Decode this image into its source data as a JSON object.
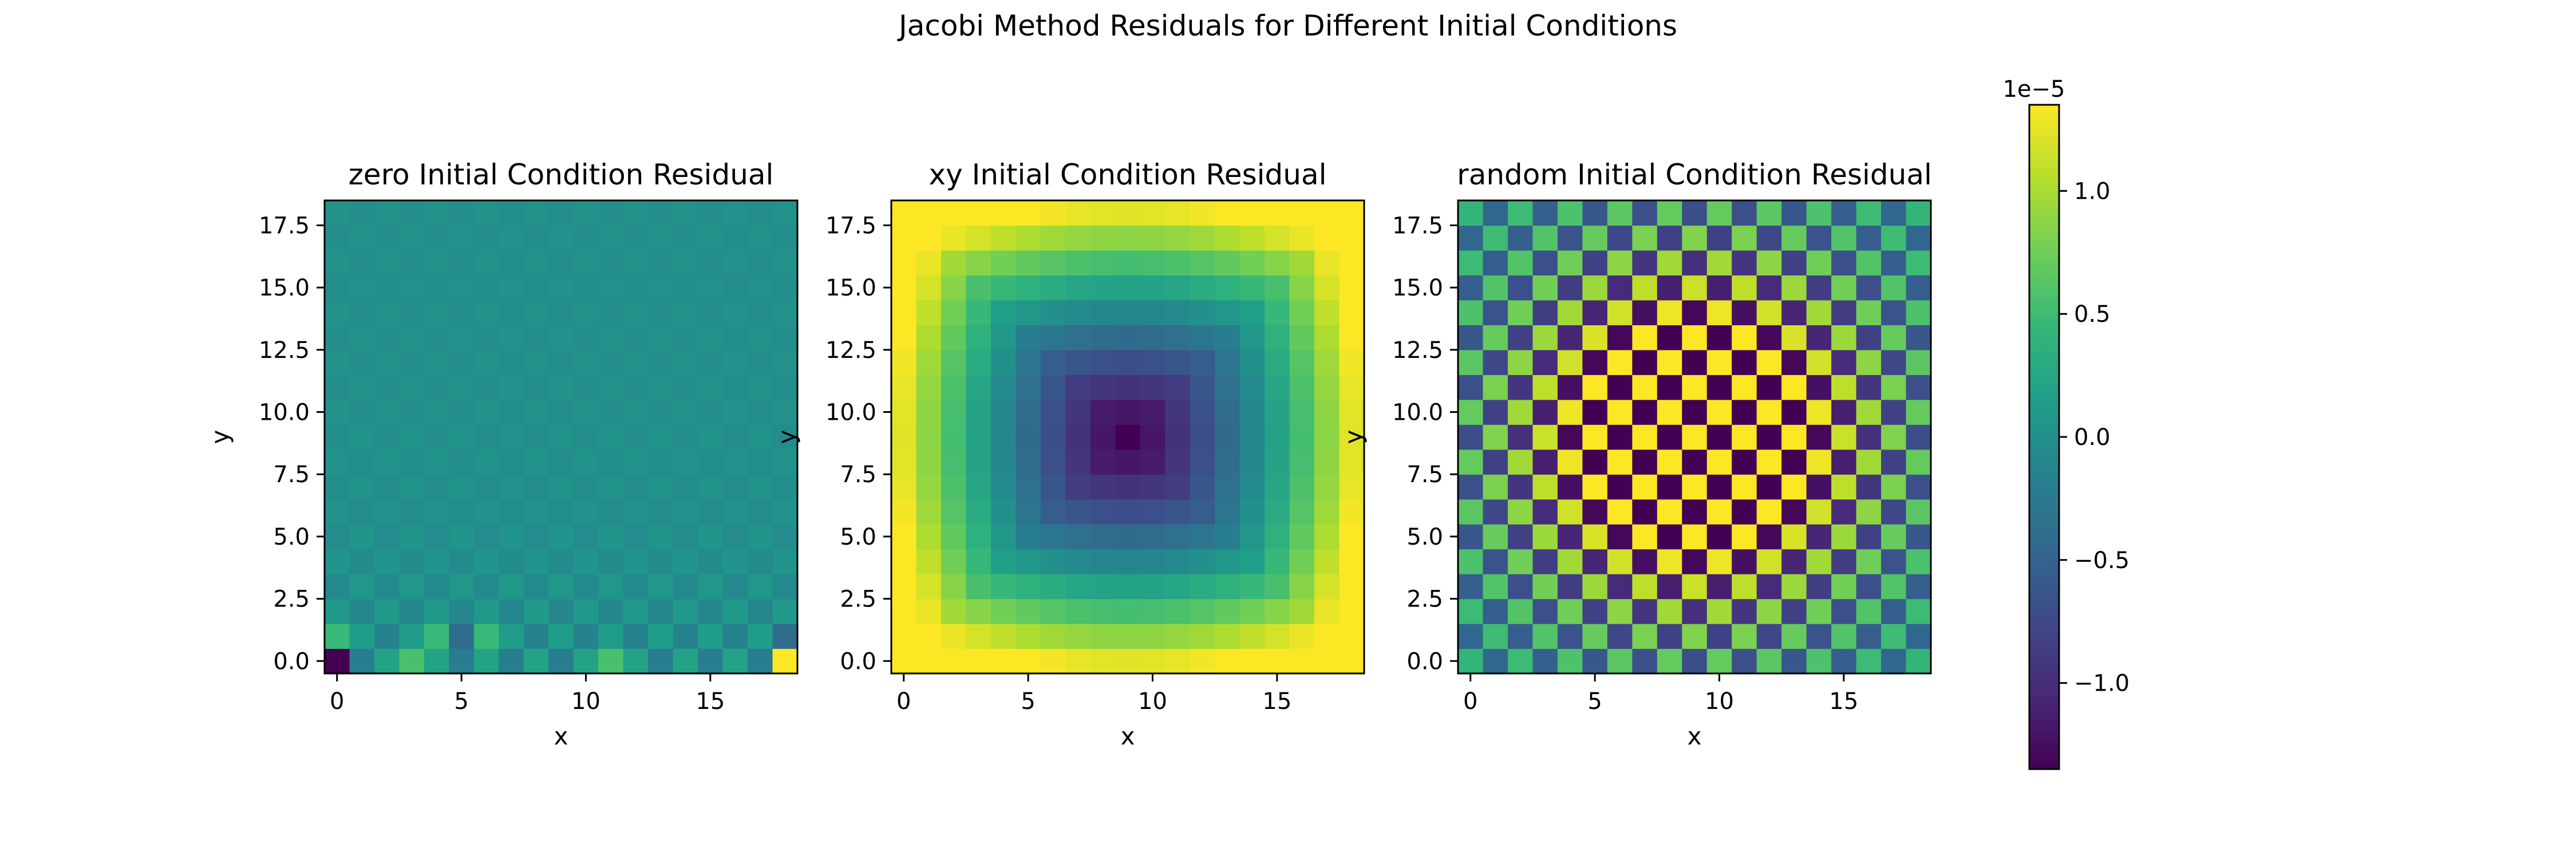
{
  "figure_title": "Jacobi Method Residuals for Different Initial Conditions",
  "chart_data": {
    "type": "heatmap",
    "colormap": "viridis",
    "colormap_stops": [
      "#440154",
      "#482878",
      "#3e4989",
      "#31688e",
      "#26828e",
      "#1f9e89",
      "#35b779",
      "#6ece58",
      "#b5de2b",
      "#fde725"
    ],
    "grid_size": 19,
    "vmin": -1.35e-05,
    "vmax": 1.35e-05,
    "colorbar": {
      "ticks": [
        -1.0,
        -0.5,
        0.0,
        0.5,
        1.0
      ],
      "tick_labels": [
        "−1.0",
        "−0.5",
        "0.0",
        "0.5",
        "1.0"
      ],
      "offset_label": "1e−5"
    },
    "panels": [
      {
        "id": "zero",
        "title": "zero Initial Condition Residual",
        "xlabel": "x",
        "ylabel": "y",
        "xticks": [
          0,
          5,
          10,
          15
        ],
        "xtick_labels": [
          "0",
          "5",
          "10",
          "15"
        ],
        "yticks": [
          0,
          2.5,
          5,
          7.5,
          10,
          12.5,
          15,
          17.5
        ],
        "ytick_labels": [
          "0.0",
          "2.5",
          "5.0",
          "7.5",
          "10.0",
          "12.5",
          "15.0",
          "17.5"
        ],
        "pattern": "zero",
        "amplitude": 1.35e-05
      },
      {
        "id": "xy",
        "title": "xy Initial Condition Residual",
        "xlabel": "x",
        "ylabel": "y",
        "xticks": [
          0,
          5,
          10,
          15
        ],
        "xtick_labels": [
          "0",
          "5",
          "10",
          "15"
        ],
        "yticks": [
          0,
          2.5,
          5,
          7.5,
          10,
          12.5,
          15,
          17.5
        ],
        "ytick_labels": [
          "0.0",
          "2.5",
          "5.0",
          "7.5",
          "10.0",
          "12.5",
          "15.0",
          "17.5"
        ],
        "pattern": "xy",
        "amplitude": 1.35e-05
      },
      {
        "id": "random",
        "title": "random Initial Condition Residual",
        "xlabel": "x",
        "ylabel": "y",
        "xticks": [
          0,
          5,
          10,
          15
        ],
        "xtick_labels": [
          "0",
          "5",
          "10",
          "15"
        ],
        "yticks": [
          0,
          2.5,
          5,
          7.5,
          10,
          12.5,
          15,
          17.5
        ],
        "ytick_labels": [
          "0.0",
          "2.5",
          "5.0",
          "7.5",
          "10.0",
          "12.5",
          "15.0",
          "17.5"
        ],
        "pattern": "random",
        "amplitude": 1.35e-05
      }
    ]
  }
}
